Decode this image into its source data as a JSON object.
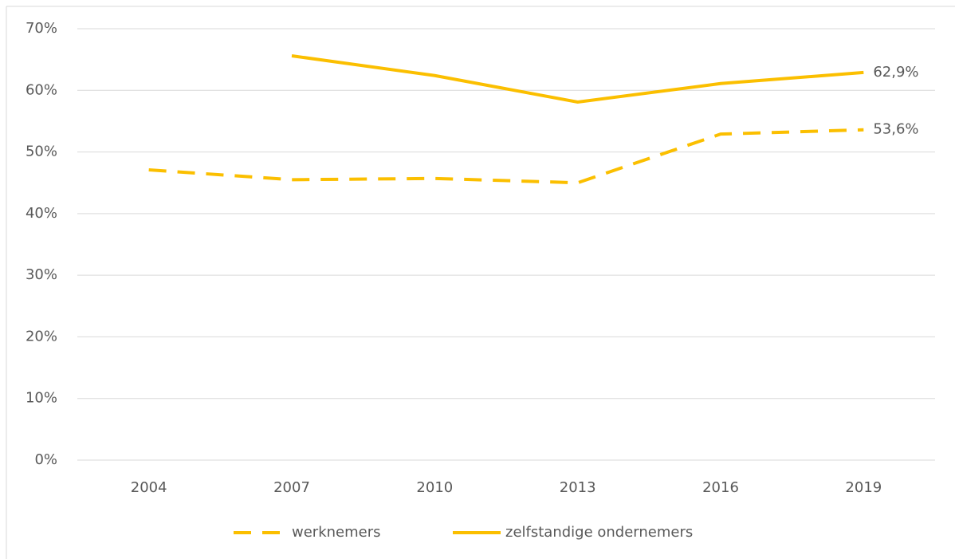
{
  "chart_data": {
    "type": "line",
    "categories": [
      "2004",
      "2007",
      "2010",
      "2013",
      "2016",
      "2019"
    ],
    "series": [
      {
        "name": "werknemers",
        "color": "#fbbf00",
        "dash": true,
        "values": [
          47.1,
          45.5,
          45.7,
          45.0,
          52.9,
          53.6
        ],
        "value_labels": [
          null,
          null,
          null,
          null,
          null,
          "53,6%"
        ]
      },
      {
        "name": "zelfstandige ondernemers",
        "color": "#fbbf00",
        "dash": false,
        "values": [
          null,
          65.6,
          62.4,
          58.1,
          61.1,
          62.9
        ],
        "value_labels": [
          null,
          null,
          null,
          null,
          null,
          "62,9%"
        ]
      }
    ],
    "ylim": [
      0,
      70
    ],
    "yticks": [
      {
        "value": 0,
        "label": "0%"
      },
      {
        "value": 10,
        "label": "10%"
      },
      {
        "value": 20,
        "label": "20%"
      },
      {
        "value": 30,
        "label": "30%"
      },
      {
        "value": 40,
        "label": "40%"
      },
      {
        "value": 50,
        "label": "50%"
      },
      {
        "value": 60,
        "label": "60%"
      },
      {
        "value": 70,
        "label": "70%"
      }
    ],
    "grid": true,
    "legend": "bottom"
  }
}
